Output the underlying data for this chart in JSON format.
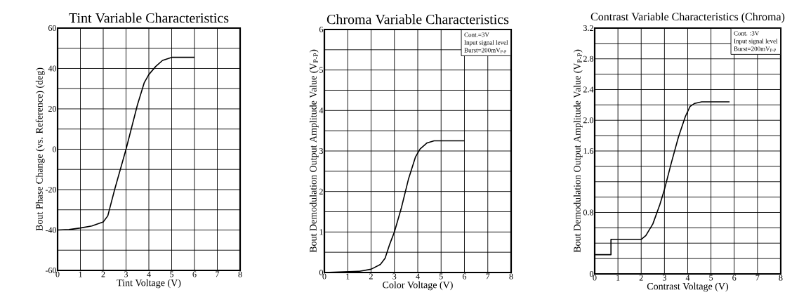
{
  "chart_data": [
    {
      "type": "line",
      "title": "Tint Variable Characteristics",
      "xlabel": "Tint Voltage (V)",
      "ylabel": "Bout Phase Change (vs. Reference) (deg)",
      "color": "#000000",
      "grid": true,
      "x": [
        0,
        0.5,
        1,
        1.5,
        2,
        2.2,
        2.5,
        3,
        3.5,
        3.8,
        4,
        4.3,
        4.6,
        5,
        6
      ],
      "values": [
        -40,
        -39.8,
        -39,
        -38,
        -36,
        -33,
        -20,
        0,
        22,
        33,
        37,
        41,
        44,
        45.5,
        45.5
      ],
      "xlim": [
        0,
        8
      ],
      "ylim": [
        -60,
        60
      ],
      "xticks": [
        0,
        1,
        2,
        3,
        4,
        5,
        6,
        7,
        8
      ],
      "yticks": [
        -60,
        {
          "value": -50,
          "label": null
        },
        -40,
        {
          "value": -30,
          "label": null
        },
        -20,
        {
          "value": -10,
          "label": null
        },
        0,
        {
          "value": 10,
          "label": null
        },
        20,
        {
          "value": 30,
          "label": null
        },
        40,
        {
          "value": 50,
          "label": null
        },
        60
      ]
    },
    {
      "type": "line",
      "title": "Chroma Variable Characteristics",
      "xlabel": "Color Voltage (V)",
      "ylabel": "Bout Demodulation Output Amplitude Value (V$_{P-P}$)",
      "color": "#000000",
      "grid": true,
      "x": [
        0,
        1,
        1.5,
        2,
        2.4,
        2.6,
        2.8,
        3,
        3.3,
        3.6,
        3.9,
        4.1,
        4.4,
        4.7,
        6
      ],
      "values": [
        0,
        0.02,
        0.03,
        0.08,
        0.2,
        0.35,
        0.7,
        1.0,
        1.6,
        2.3,
        2.85,
        3.05,
        3.2,
        3.25,
        3.25
      ],
      "xlim": [
        0,
        8
      ],
      "ylim": [
        0,
        6
      ],
      "xticks": [
        0,
        1,
        2,
        3,
        4,
        5,
        6,
        7,
        8
      ],
      "yticks": [
        0,
        {
          "value": 0.5,
          "label": null
        },
        1,
        {
          "value": 1.5,
          "label": null
        },
        2,
        {
          "value": 2.5,
          "label": null
        },
        3,
        {
          "value": 3.5,
          "label": null
        },
        4,
        {
          "value": 4.5,
          "label": null
        },
        5,
        {
          "value": 5.5,
          "label": null
        },
        6
      ],
      "annotations": [
        "Cont.=3V",
        "Input signal level",
        "Burst=200mV$_{P-P}$"
      ]
    },
    {
      "type": "line",
      "title": "Contrast Variable Characteristics (Chroma)",
      "xlabel": "Contrast Voltage (V)",
      "ylabel": "Bout Demodulation Output Amplitude Value (V$_{P-P}$)",
      "color": "#000000",
      "grid": true,
      "x": [
        0,
        0.7,
        0.7,
        2,
        2.2,
        2.5,
        2.8,
        3,
        3.3,
        3.6,
        3.9,
        4.1,
        4.3,
        4.6,
        5.8
      ],
      "values": [
        0.25,
        0.25,
        0.45,
        0.45,
        0.5,
        0.65,
        0.9,
        1.1,
        1.45,
        1.78,
        2.05,
        2.18,
        2.22,
        2.24,
        2.24
      ],
      "xlim": [
        0,
        8
      ],
      "ylim": [
        0,
        3.2
      ],
      "xticks": [
        0,
        1,
        2,
        3,
        4,
        5,
        6,
        7,
        8
      ],
      "yticks": [
        0,
        {
          "value": 0.2,
          "label": null
        },
        {
          "value": 0.4,
          "label": null
        },
        {
          "value": 0.6,
          "label": null
        },
        0.8,
        {
          "value": 1.0,
          "label": null
        },
        {
          "value": 1.2,
          "label": null
        },
        {
          "value": 1.4,
          "label": null
        },
        1.6,
        {
          "value": 1.8,
          "label": null
        },
        {
          "value": 2.0,
          "label": "2.0"
        },
        {
          "value": 2.2,
          "label": null
        },
        2.4,
        {
          "value": 2.6,
          "label": null
        },
        2.8,
        {
          "value": 3.0,
          "label": null
        },
        3.2
      ],
      "annotations": [
        "Cont. :3V",
        "Input signal level",
        "Burst=200mV$_{P-P}$"
      ]
    }
  ]
}
